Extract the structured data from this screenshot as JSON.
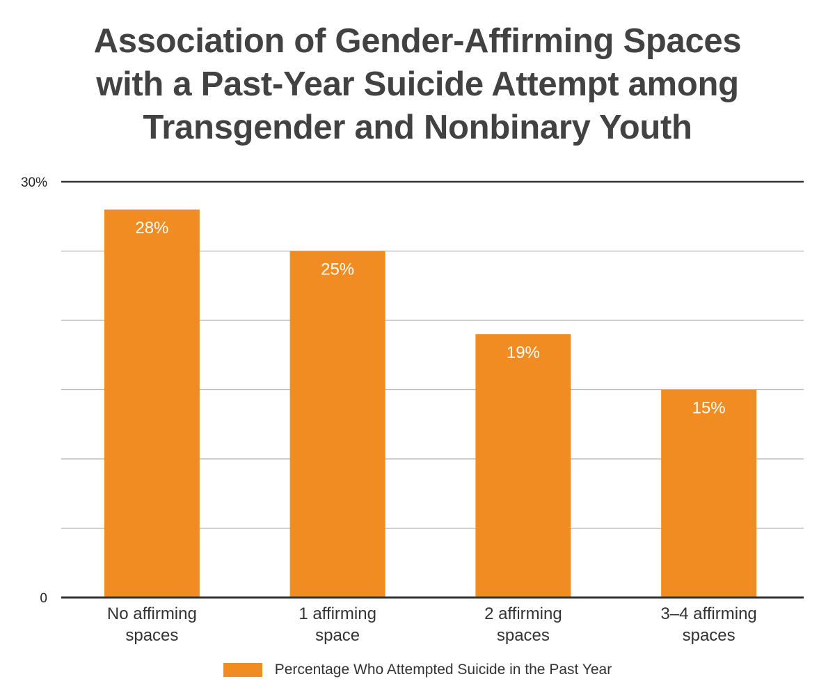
{
  "title_lines": [
    "Association of Gender-Affirming Spaces",
    "with a Past-Year Suicide Attempt among",
    "Transgender and Nonbinary Youth"
  ],
  "colors": {
    "bar": "#F08C21",
    "axis": "#333333",
    "grid": "#b5b5b5",
    "title": "#424242"
  },
  "chart_data": {
    "type": "bar",
    "title": "Association of Gender-Affirming Spaces with a Past-Year Suicide Attempt among Transgender and Nonbinary Youth",
    "categories": [
      [
        "No affirming",
        "spaces"
      ],
      [
        "1 affirming",
        "space"
      ],
      [
        "2 affirming",
        "spaces"
      ],
      [
        "3–4 affirming",
        "spaces"
      ]
    ],
    "series": [
      {
        "name": "Percentage Who Attempted Suicide in the Past Year",
        "values": [
          28,
          25,
          19,
          15
        ]
      }
    ],
    "data_labels": [
      "28%",
      "25%",
      "19%",
      "15%"
    ],
    "ylim": [
      0,
      30
    ],
    "yticks": [
      {
        "value": 30,
        "label": "30%"
      },
      {
        "value": 0,
        "label": "0"
      }
    ],
    "grid_values": [
      5,
      10,
      15,
      20,
      25
    ],
    "grid": true,
    "legend": "bottom"
  }
}
